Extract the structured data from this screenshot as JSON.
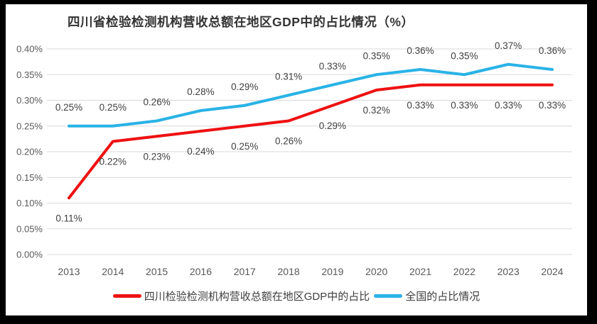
{
  "chart_data": {
    "type": "line",
    "title": "四川省检验检测机构营收总额在地区GDP中的占比情况（%）",
    "categories": [
      "2013",
      "2014",
      "2015",
      "2016",
      "2017",
      "2018",
      "2019",
      "2020",
      "2021",
      "2022",
      "2023",
      "2024"
    ],
    "xlabel": "",
    "ylabel": "",
    "y_axis": {
      "min": 0.0,
      "max": 0.4,
      "step": 0.05,
      "unit": "%",
      "ticks": [
        "0.40%",
        "0.35%",
        "0.30%",
        "0.25%",
        "0.20%",
        "0.15%",
        "0.10%",
        "0.05%",
        "0.00%"
      ]
    },
    "grid": true,
    "legend_position": "bottom",
    "series": [
      {
        "key": "sichuan",
        "name": "四川检验检测机构营收总额在地区GDP中的占比",
        "color": "#ee1111",
        "label_position": "below",
        "values": [
          0.11,
          0.22,
          0.23,
          0.24,
          0.25,
          0.26,
          0.29,
          0.32,
          0.33,
          0.33,
          0.33,
          0.33
        ],
        "labels": [
          "0.11%",
          "0.22%",
          "0.23%",
          "0.24%",
          "0.25%",
          "0.26%",
          "0.29%",
          "0.32%",
          "0.33%",
          "0.33%",
          "0.33%",
          "0.33%"
        ]
      },
      {
        "key": "national",
        "name": "全国的占比情况",
        "color": "#29b3e6",
        "label_position": "above",
        "values": [
          0.25,
          0.25,
          0.26,
          0.28,
          0.29,
          0.31,
          0.33,
          0.35,
          0.36,
          0.35,
          0.37,
          0.36
        ],
        "labels": [
          "0.25%",
          "0.25%",
          "0.26%",
          "0.28%",
          "0.29%",
          "0.31%",
          "0.33%",
          "0.35%",
          "0.36%",
          "0.35%",
          "0.37%",
          "0.36%"
        ]
      }
    ]
  },
  "colors": {
    "sichuan_red": "#ee1111",
    "national_blue": "#29b3e6",
    "gridline": "#d9d9d9",
    "axis_text": "#595959",
    "data_label_text": "#3f3f3f",
    "title_text": "#333333",
    "frame": "#000000",
    "background": "#ffffff"
  }
}
